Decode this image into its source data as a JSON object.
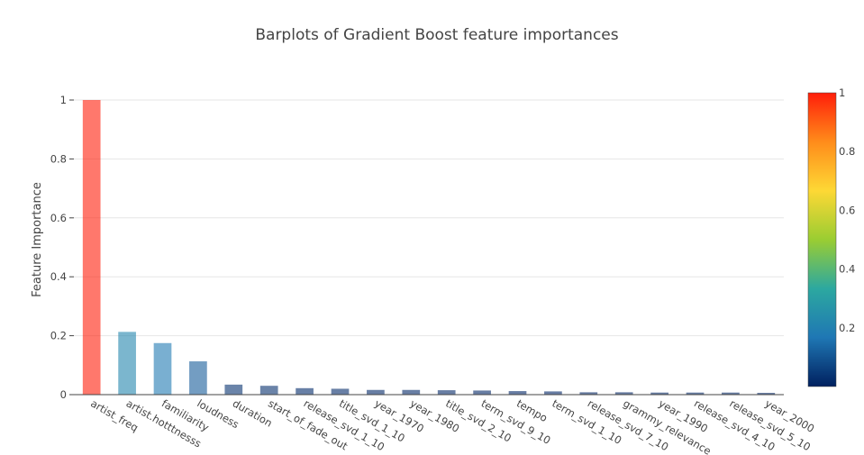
{
  "chart_data": {
    "type": "bar",
    "title": "Barplots of Gradient Boost feature importances",
    "xlabel": "",
    "ylabel": "Feature Importance",
    "ylim": [
      0,
      1
    ],
    "yticks": [
      "0",
      "0.2",
      "0.4",
      "0.6",
      "0.8",
      "1"
    ],
    "grid": true,
    "categories": [
      "artist_freq",
      "artist.hotttnesss",
      "familiarity",
      "loudness",
      "duration",
      "start_of_fade_out",
      "release_svd_1_10",
      "title_svd_1_10",
      "year_1970",
      "year_1980",
      "title_svd_2_10",
      "term_svd_9_10",
      "tempo",
      "term_svd_1_10",
      "release_svd_7_10",
      "grammy_relevance",
      "year_1990",
      "release_svd_4_10",
      "release_svd_5_10",
      "year_2000"
    ],
    "values": [
      1.0,
      0.213,
      0.175,
      0.113,
      0.034,
      0.03,
      0.022,
      0.02,
      0.016,
      0.016,
      0.015,
      0.014,
      0.012,
      0.011,
      0.008,
      0.008,
      0.007,
      0.007,
      0.007,
      0.006
    ],
    "colorscale": {
      "range": [
        0,
        1
      ],
      "ticks": [
        "0.2",
        "0.4",
        "0.6",
        "0.8",
        "1"
      ],
      "stops": [
        "#00205f",
        "#1f77b4",
        "#2ca8a0",
        "#9acd32",
        "#fdd835",
        "#ff8c1a",
        "#ff1e0a"
      ]
    }
  }
}
